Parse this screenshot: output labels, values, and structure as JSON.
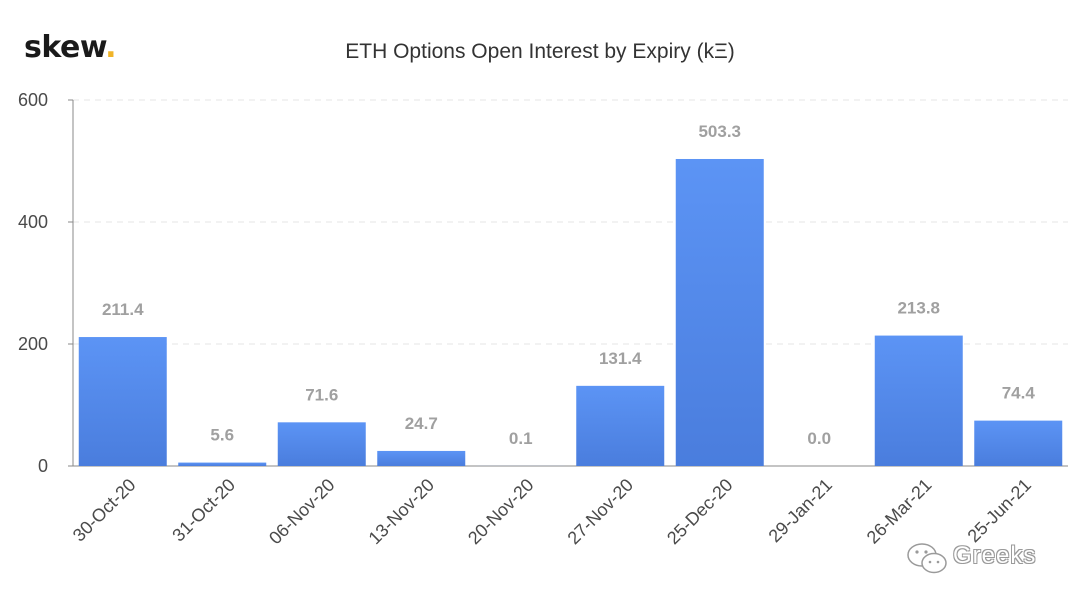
{
  "logo": {
    "text": "skew",
    "dot": "."
  },
  "watermark": {
    "text": "Greeks",
    "icon": "wechat-icon"
  },
  "colors": {
    "bar_top": "#5c94f5",
    "bar_bottom": "#4a7ddd",
    "label": "#a0a0a0",
    "axis_text": "#4a4a4a",
    "grid": "#e6e6e6"
  },
  "chart_data": {
    "type": "bar",
    "title": "ETH Options Open Interest by Expiry (kΞ)",
    "xlabel": "",
    "ylabel": "",
    "categories": [
      "30-Oct-20",
      "31-Oct-20",
      "06-Nov-20",
      "13-Nov-20",
      "20-Nov-20",
      "27-Nov-20",
      "25-Dec-20",
      "29-Jan-21",
      "26-Mar-21",
      "25-Jun-21"
    ],
    "values": [
      211.4,
      5.6,
      71.6,
      24.7,
      0.1,
      131.4,
      503.3,
      0.0,
      213.8,
      74.4
    ],
    "data_labels": [
      "211.4",
      "5.6",
      "71.6",
      "24.7",
      "0.1",
      "131.4",
      "503.3",
      "0.0",
      "213.8",
      "74.4"
    ],
    "ylim": [
      0,
      600
    ],
    "yticks": [
      0,
      200,
      400,
      600
    ],
    "grid": true,
    "legend": "none"
  }
}
